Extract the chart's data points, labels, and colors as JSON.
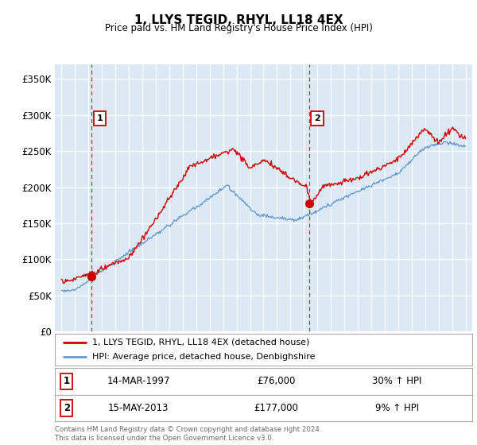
{
  "title": "1, LLYS TEGID, RHYL, LL18 4EX",
  "subtitle": "Price paid vs. HM Land Registry's House Price Index (HPI)",
  "legend_line1": "1, LLYS TEGID, RHYL, LL18 4EX (detached house)",
  "legend_line2": "HPI: Average price, detached house, Denbighshire",
  "annotation1_label": "1",
  "annotation1_date": "14-MAR-1997",
  "annotation1_price": "£76,000",
  "annotation1_hpi": "30% ↑ HPI",
  "annotation1_year": 1997.21,
  "annotation1_value": 76000,
  "annotation2_label": "2",
  "annotation2_date": "15-MAY-2013",
  "annotation2_price": "£177,000",
  "annotation2_hpi": "9% ↑ HPI",
  "annotation2_year": 2013.37,
  "annotation2_value": 177000,
  "ylabel_ticks": [
    "£0",
    "£50K",
    "£100K",
    "£150K",
    "£200K",
    "£250K",
    "£300K",
    "£350K"
  ],
  "ytick_values": [
    0,
    50000,
    100000,
    150000,
    200000,
    250000,
    300000,
    350000
  ],
  "xlim": [
    1994.5,
    2025.5
  ],
  "ylim": [
    0,
    370000
  ],
  "plot_bg_color": "#dce9f5",
  "footer": "Contains HM Land Registry data © Crown copyright and database right 2024.\nThis data is licensed under the Open Government Licence v3.0.",
  "red_line_color": "#cc0000",
  "blue_line_color": "#6699cc",
  "grid_color": "#ffffff"
}
